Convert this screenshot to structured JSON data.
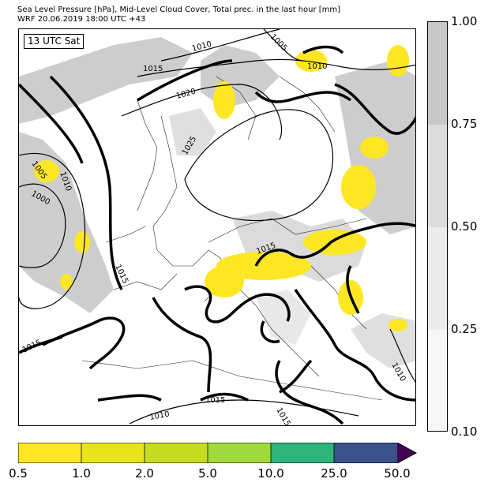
{
  "header": {
    "title_line1": "Sea Level Pressure [hPa], Mid-Level Cloud Cover, Total prec. in the last hour [mm]",
    "title_line2": "WRF 20.06.2019 18:00 UTC +43"
  },
  "map": {
    "time_label": "13 UTC Sat",
    "isobar_labels": [
      "1010",
      "1005",
      "1015",
      "1010",
      "1020",
      "1025",
      "1005",
      "1010",
      "1000",
      "1015",
      "1015",
      "1015",
      "1010",
      "1015",
      "1015",
      "1010"
    ]
  },
  "cloud_colorbar": {
    "ticks": [
      "1.00",
      "0.75",
      "0.50",
      "0.25",
      "0.10"
    ],
    "colors": [
      "#c8c8c8",
      "#dcdcdc",
      "#ececec",
      "#f7f7f7"
    ]
  },
  "precip_colorbar": {
    "ticks": [
      "0.5",
      "1.0",
      "2.0",
      "5.0",
      "10.0",
      "25.0",
      "50.0"
    ],
    "colors": [
      "#fde725",
      "#e8e419",
      "#c7dc1e",
      "#9fd93c",
      "#2fb47c",
      "#3b528b",
      "#440154"
    ]
  }
}
